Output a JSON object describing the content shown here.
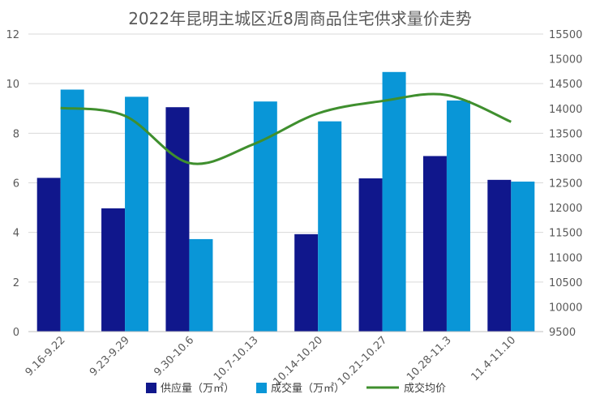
{
  "chart_data": {
    "type": "bar",
    "title": "2022年昆明主城区近8周商品住宅供求量价走势",
    "categories": [
      "9.16-9.22",
      "9.23-9.29",
      "9.30-10.6",
      "10.7-10.13",
      "10.14-10.20",
      "10.21-10.27",
      "10.28-11.3",
      "11.4-11.10"
    ],
    "series": [
      {
        "name": "供应量（万㎡）",
        "type": "bar",
        "axis": "left",
        "color": "#10178C",
        "values": [
          6.2,
          4.97,
          9.05,
          0,
          3.93,
          6.18,
          7.08,
          6.12
        ]
      },
      {
        "name": "成交量（万㎡）",
        "type": "bar",
        "axis": "left",
        "color": "#0996D7",
        "values": [
          9.76,
          9.47,
          3.73,
          9.28,
          8.48,
          10.47,
          9.32,
          6.05
        ]
      },
      {
        "name": "成交均价",
        "type": "line",
        "axis": "right",
        "color": "#3F8F2E",
        "values": [
          14010,
          13850,
          12900,
          13280,
          13900,
          14150,
          14270,
          13730
        ]
      }
    ],
    "ylim_left": [
      0,
      12
    ],
    "ylim_right": [
      9500,
      15500
    ],
    "yticks_left": [
      "0",
      "2",
      "4",
      "6",
      "8",
      "10",
      "12"
    ],
    "yticks_right": [
      "9500",
      "10000",
      "10500",
      "11000",
      "11500",
      "12000",
      "12500",
      "13000",
      "13500",
      "14000",
      "14500",
      "15000",
      "15500"
    ],
    "grid": true,
    "legend_position": "bottom"
  }
}
